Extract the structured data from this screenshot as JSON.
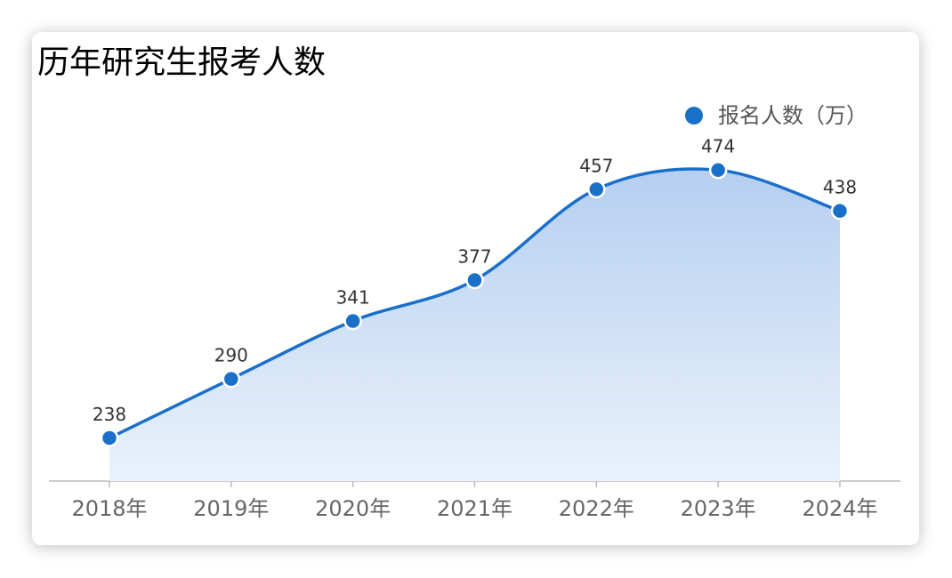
{
  "chart_data": {
    "type": "line",
    "title": "历年研究生报考人数",
    "categories": [
      "2018年",
      "2019年",
      "2020年",
      "2021年",
      "2022年",
      "2023年",
      "2024年"
    ],
    "series": [
      {
        "name": "报名人数（万）",
        "color": "#1a6fc9",
        "values": [
          238,
          290,
          341,
          377,
          457,
          474,
          438
        ]
      }
    ],
    "ylim": [
      200,
      500
    ],
    "smooth": true,
    "area": true,
    "legend": "top-right"
  }
}
